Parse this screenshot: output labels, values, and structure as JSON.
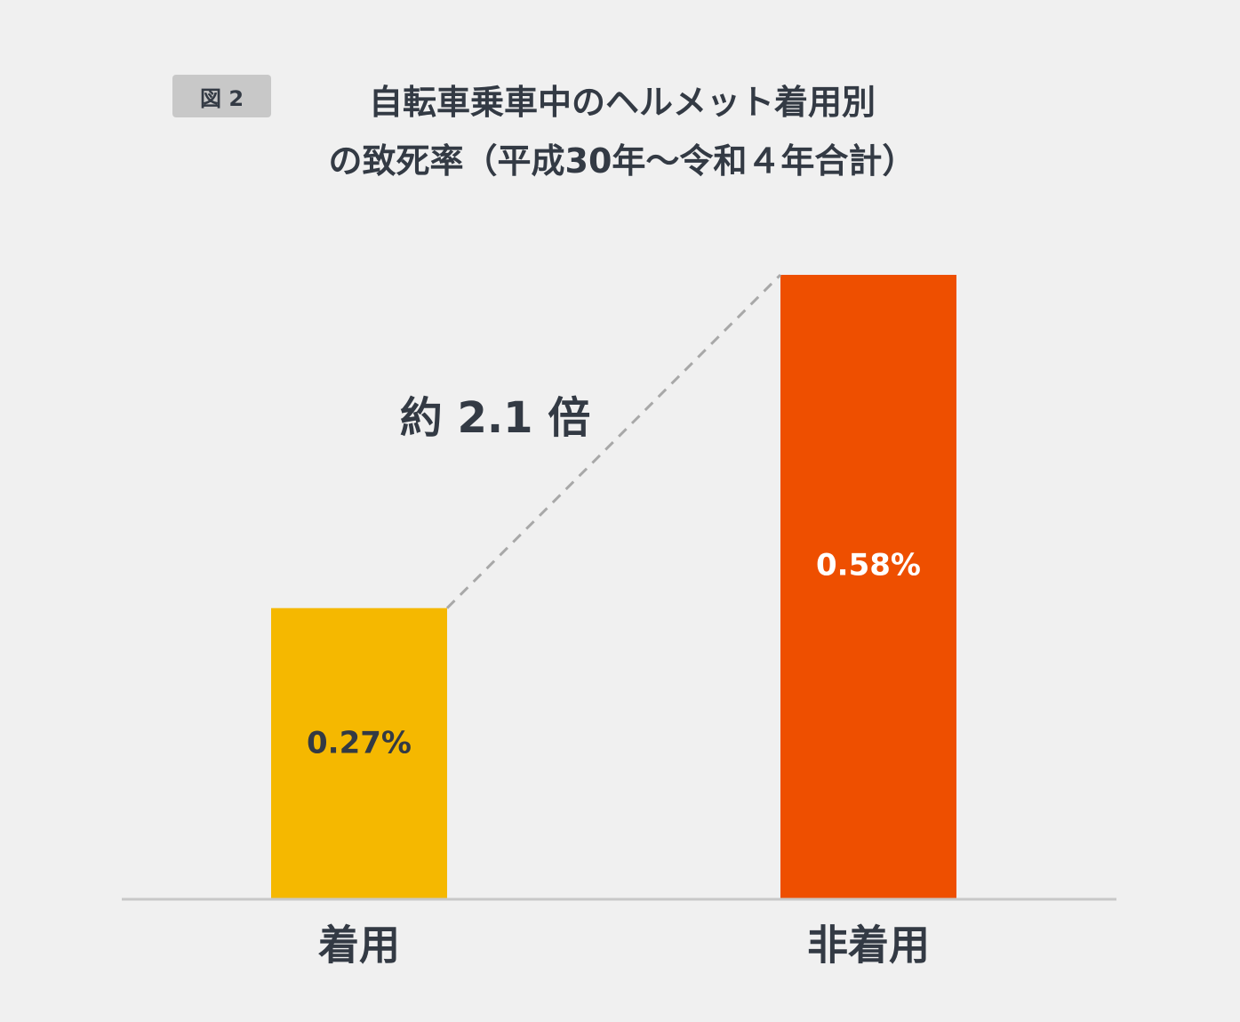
{
  "figure_label": "図 2",
  "title_line1": "自転車乗車中のヘルメット着用別",
  "title_line2": "の致死率（平成30年〜令和４年合計）",
  "colors": {
    "background": "#f0f0f0",
    "text": "#333a44",
    "badge": "#c8c8c8",
    "bar_helmet": "#f5b800",
    "bar_no_helmet": "#ee4f00",
    "axis": "#c8c8c8",
    "dashed_line": "#a8a8a8"
  },
  "chart_data": {
    "type": "bar",
    "categories": [
      "着用",
      "非着用"
    ],
    "values": [
      0.27,
      0.58
    ],
    "value_labels": [
      "0.27%",
      "0.58%"
    ],
    "value_label_colors": [
      "#333a44",
      "#ffffff"
    ],
    "bar_colors": [
      "#f5b800",
      "#ee4f00"
    ],
    "annotation": "約 2.1 倍",
    "xlabel": "",
    "ylabel": "",
    "ylim": [
      0,
      0.58
    ],
    "grid": false,
    "legend": "none"
  }
}
